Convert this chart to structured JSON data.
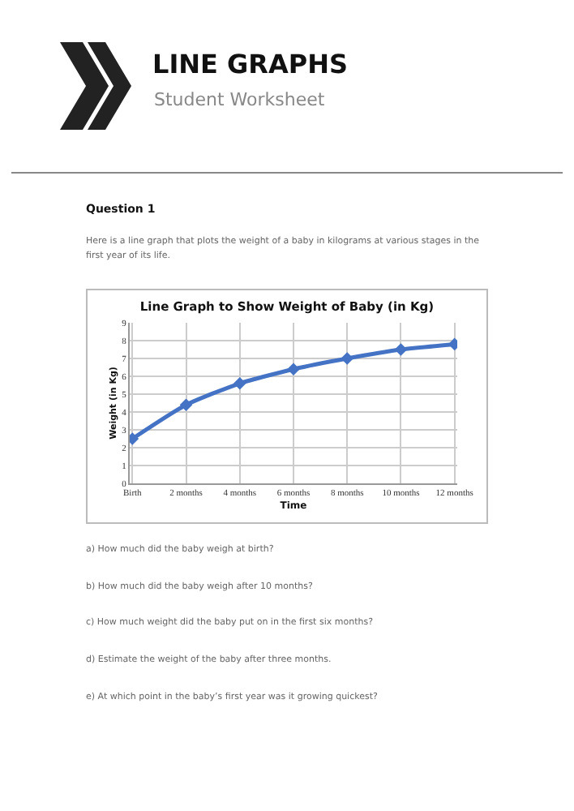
{
  "chart_data": {
    "type": "line",
    "title": "Line Graph to Show Weight of Baby (in Kg)",
    "xlabel": "Time",
    "ylabel": "Weight (in Kg)",
    "categories": [
      "Birth",
      "2 months",
      "4 months",
      "6 months",
      "8 months",
      "10 months",
      "12 months"
    ],
    "series": [
      {
        "color": "#4472c4",
        "values": [
          2.5,
          4.4,
          5.6,
          6.4,
          7.0,
          7.5,
          7.8
        ]
      }
    ],
    "ylim": [
      0,
      9
    ],
    "yticks": [
      0,
      1,
      2,
      3,
      4,
      5,
      6,
      7,
      8,
      9
    ],
    "grid": true,
    "marker": "diamond",
    "line_style": "solid",
    "annotations": [
      "LINE GRAPHS",
      "Student Worksheet",
      "Question 1",
      "Here is a line graph that plots the weight of a baby in kilograms at various stages in the first year of its life.",
      "a) How much did the baby weigh at birth?",
      "b) How much did the baby weigh after 10 months?",
      "c) How much weight did the baby put on in the first six months?",
      "d) Estimate the weight of the baby after three months.",
      "e) At which point in the baby’s first year was it growing quickest?"
    ]
  }
}
